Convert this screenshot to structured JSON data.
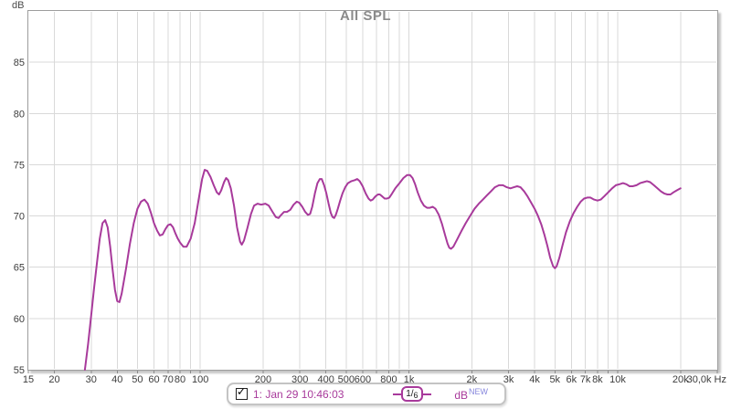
{
  "chart_data": {
    "type": "line",
    "title": "All SPL",
    "x_axis": {
      "scale": "log",
      "min": 15,
      "max": 30000,
      "unit": "Hz",
      "gridline_freqs": [
        20,
        30,
        40,
        50,
        60,
        70,
        80,
        90,
        100,
        200,
        300,
        400,
        500,
        600,
        700,
        800,
        900,
        1000,
        2000,
        3000,
        4000,
        5000,
        6000,
        7000,
        8000,
        9000,
        10000,
        20000
      ],
      "ticks": [
        {
          "f": 15,
          "label": "15"
        },
        {
          "f": 20,
          "label": "20"
        },
        {
          "f": 30,
          "label": "30"
        },
        {
          "f": 40,
          "label": "40"
        },
        {
          "f": 50,
          "label": "50"
        },
        {
          "f": 60,
          "label": "60"
        },
        {
          "f": 70,
          "label": "70"
        },
        {
          "f": 80,
          "label": "80"
        },
        {
          "f": 100,
          "label": "100"
        },
        {
          "f": 200,
          "label": "200"
        },
        {
          "f": 300,
          "label": "300"
        },
        {
          "f": 400,
          "label": "400"
        },
        {
          "f": 500,
          "label": "500"
        },
        {
          "f": 600,
          "label": "600"
        },
        {
          "f": 800,
          "label": "800"
        },
        {
          "f": 1000,
          "label": "1k"
        },
        {
          "f": 2000,
          "label": "2k"
        },
        {
          "f": 3000,
          "label": "3k"
        },
        {
          "f": 4000,
          "label": "4k"
        },
        {
          "f": 5000,
          "label": "5k"
        },
        {
          "f": 6000,
          "label": "6k"
        },
        {
          "f": 7000,
          "label": "7k"
        },
        {
          "f": 8000,
          "label": "8k"
        },
        {
          "f": 10000,
          "label": "10k"
        },
        {
          "f": 20000,
          "label": "20k"
        },
        {
          "f": 30000,
          "label": "30,0k Hz",
          "anchor": "end"
        }
      ]
    },
    "y_axis": {
      "min": 55,
      "max": 90,
      "unit": "dB",
      "tick_step": 5,
      "labeled_values": [
        55,
        60,
        65,
        70,
        75,
        80,
        85
      ],
      "grid_values": [
        60,
        65,
        70,
        75,
        80,
        85
      ]
    },
    "grid": true,
    "colors": {
      "trace": "#a83a9b",
      "gridline": "#d9d9d9",
      "border": "#9d9d9d",
      "tick_text": "#3c3c3c",
      "title_text": "#8a8a8a"
    },
    "series": [
      {
        "name": "1: Jan 29 10:46:03",
        "color": "#a83a9b",
        "smoothing": "1/6",
        "unit": "dB",
        "points": [
          [
            28,
            55.0
          ],
          [
            29,
            57.5
          ],
          [
            30,
            60.3
          ],
          [
            31,
            63.0
          ],
          [
            32,
            65.5
          ],
          [
            33,
            67.8
          ],
          [
            34,
            69.3
          ],
          [
            35,
            69.6
          ],
          [
            36,
            68.9
          ],
          [
            37,
            67.0
          ],
          [
            38,
            64.8
          ],
          [
            39,
            62.8
          ],
          [
            40,
            61.7
          ],
          [
            41,
            61.6
          ],
          [
            42,
            62.4
          ],
          [
            44,
            64.8
          ],
          [
            46,
            67.3
          ],
          [
            48,
            69.3
          ],
          [
            50,
            70.7
          ],
          [
            52,
            71.4
          ],
          [
            54,
            71.6
          ],
          [
            56,
            71.2
          ],
          [
            58,
            70.3
          ],
          [
            60,
            69.3
          ],
          [
            62,
            68.6
          ],
          [
            64,
            68.1
          ],
          [
            66,
            68.2
          ],
          [
            68,
            68.7
          ],
          [
            70,
            69.1
          ],
          [
            72,
            69.2
          ],
          [
            74,
            68.9
          ],
          [
            76,
            68.3
          ],
          [
            78,
            67.8
          ],
          [
            80,
            67.4
          ],
          [
            83,
            67.0
          ],
          [
            86,
            67.0
          ],
          [
            90,
            67.8
          ],
          [
            94,
            69.3
          ],
          [
            98,
            71.5
          ],
          [
            102,
            73.6
          ],
          [
            105,
            74.5
          ],
          [
            108,
            74.4
          ],
          [
            112,
            73.8
          ],
          [
            116,
            73.0
          ],
          [
            120,
            72.3
          ],
          [
            123,
            72.1
          ],
          [
            126,
            72.5
          ],
          [
            130,
            73.3
          ],
          [
            133,
            73.7
          ],
          [
            136,
            73.5
          ],
          [
            140,
            72.7
          ],
          [
            145,
            71.0
          ],
          [
            150,
            68.9
          ],
          [
            155,
            67.5
          ],
          [
            158,
            67.2
          ],
          [
            162,
            67.6
          ],
          [
            168,
            68.8
          ],
          [
            175,
            70.2
          ],
          [
            181,
            71.0
          ],
          [
            188,
            71.2
          ],
          [
            196,
            71.1
          ],
          [
            205,
            71.2
          ],
          [
            213,
            71.0
          ],
          [
            222,
            70.4
          ],
          [
            230,
            69.9
          ],
          [
            237,
            69.8
          ],
          [
            244,
            70.1
          ],
          [
            252,
            70.4
          ],
          [
            260,
            70.4
          ],
          [
            270,
            70.6
          ],
          [
            280,
            71.1
          ],
          [
            290,
            71.4
          ],
          [
            298,
            71.3
          ],
          [
            308,
            70.9
          ],
          [
            318,
            70.4
          ],
          [
            328,
            70.1
          ],
          [
            336,
            70.2
          ],
          [
            344,
            70.9
          ],
          [
            354,
            72.2
          ],
          [
            364,
            73.2
          ],
          [
            374,
            73.6
          ],
          [
            382,
            73.6
          ],
          [
            392,
            73.0
          ],
          [
            402,
            72.2
          ],
          [
            412,
            71.2
          ],
          [
            422,
            70.3
          ],
          [
            430,
            69.9
          ],
          [
            438,
            69.8
          ],
          [
            446,
            70.1
          ],
          [
            456,
            70.7
          ],
          [
            468,
            71.5
          ],
          [
            480,
            72.2
          ],
          [
            495,
            72.8
          ],
          [
            510,
            73.2
          ],
          [
            530,
            73.4
          ],
          [
            550,
            73.5
          ],
          [
            565,
            73.6
          ],
          [
            580,
            73.4
          ],
          [
            600,
            72.9
          ],
          [
            620,
            72.2
          ],
          [
            640,
            71.7
          ],
          [
            655,
            71.5
          ],
          [
            670,
            71.6
          ],
          [
            690,
            71.9
          ],
          [
            710,
            72.1
          ],
          [
            725,
            72.1
          ],
          [
            745,
            71.9
          ],
          [
            765,
            71.7
          ],
          [
            785,
            71.7
          ],
          [
            805,
            71.8
          ],
          [
            830,
            72.2
          ],
          [
            860,
            72.7
          ],
          [
            900,
            73.2
          ],
          [
            940,
            73.7
          ],
          [
            980,
            74.0
          ],
          [
            1010,
            74.0
          ],
          [
            1040,
            73.7
          ],
          [
            1070,
            73.1
          ],
          [
            1100,
            72.3
          ],
          [
            1140,
            71.5
          ],
          [
            1180,
            71.0
          ],
          [
            1220,
            70.8
          ],
          [
            1260,
            70.8
          ],
          [
            1300,
            70.9
          ],
          [
            1340,
            70.7
          ],
          [
            1390,
            70.1
          ],
          [
            1440,
            69.2
          ],
          [
            1490,
            68.1
          ],
          [
            1530,
            67.3
          ],
          [
            1560,
            66.9
          ],
          [
            1590,
            66.8
          ],
          [
            1630,
            67.0
          ],
          [
            1700,
            67.7
          ],
          [
            1780,
            68.5
          ],
          [
            1870,
            69.3
          ],
          [
            1960,
            70.0
          ],
          [
            2060,
            70.7
          ],
          [
            2160,
            71.2
          ],
          [
            2260,
            71.6
          ],
          [
            2360,
            72.0
          ],
          [
            2470,
            72.4
          ],
          [
            2580,
            72.8
          ],
          [
            2700,
            73.0
          ],
          [
            2820,
            73.0
          ],
          [
            2940,
            72.8
          ],
          [
            3060,
            72.7
          ],
          [
            3180,
            72.8
          ],
          [
            3300,
            72.9
          ],
          [
            3420,
            72.8
          ],
          [
            3560,
            72.4
          ],
          [
            3700,
            71.9
          ],
          [
            3850,
            71.3
          ],
          [
            4000,
            70.7
          ],
          [
            4150,
            70.0
          ],
          [
            4300,
            69.2
          ],
          [
            4450,
            68.2
          ],
          [
            4600,
            67.1
          ],
          [
            4750,
            65.9
          ],
          [
            4900,
            65.1
          ],
          [
            5000,
            64.9
          ],
          [
            5100,
            65.1
          ],
          [
            5250,
            65.9
          ],
          [
            5450,
            67.2
          ],
          [
            5650,
            68.4
          ],
          [
            5900,
            69.5
          ],
          [
            6150,
            70.3
          ],
          [
            6400,
            70.9
          ],
          [
            6650,
            71.4
          ],
          [
            6900,
            71.7
          ],
          [
            7150,
            71.8
          ],
          [
            7400,
            71.8
          ],
          [
            7700,
            71.6
          ],
          [
            8000,
            71.5
          ],
          [
            8300,
            71.6
          ],
          [
            8600,
            71.9
          ],
          [
            9000,
            72.3
          ],
          [
            9400,
            72.7
          ],
          [
            9800,
            73.0
          ],
          [
            10200,
            73.1
          ],
          [
            10600,
            73.2
          ],
          [
            11000,
            73.1
          ],
          [
            11400,
            72.9
          ],
          [
            11800,
            72.9
          ],
          [
            12300,
            73.0
          ],
          [
            12800,
            73.2
          ],
          [
            13300,
            73.3
          ],
          [
            13800,
            73.4
          ],
          [
            14300,
            73.3
          ],
          [
            14900,
            73.0
          ],
          [
            15500,
            72.7
          ],
          [
            16100,
            72.4
          ],
          [
            16700,
            72.2
          ],
          [
            17300,
            72.1
          ],
          [
            17900,
            72.1
          ],
          [
            18500,
            72.3
          ],
          [
            19200,
            72.5
          ],
          [
            20000,
            72.7
          ]
        ]
      }
    ],
    "legend_position": "bottom-center"
  },
  "legend": {
    "checkbox_checked": true,
    "check_glyph": "✓",
    "entry_label": "1: Jan 29 10:46:03",
    "smoothing_num": "1",
    "smoothing_sep": "/",
    "smoothing_den": "6",
    "unit_label": "dB",
    "new_badge": "NEW"
  }
}
